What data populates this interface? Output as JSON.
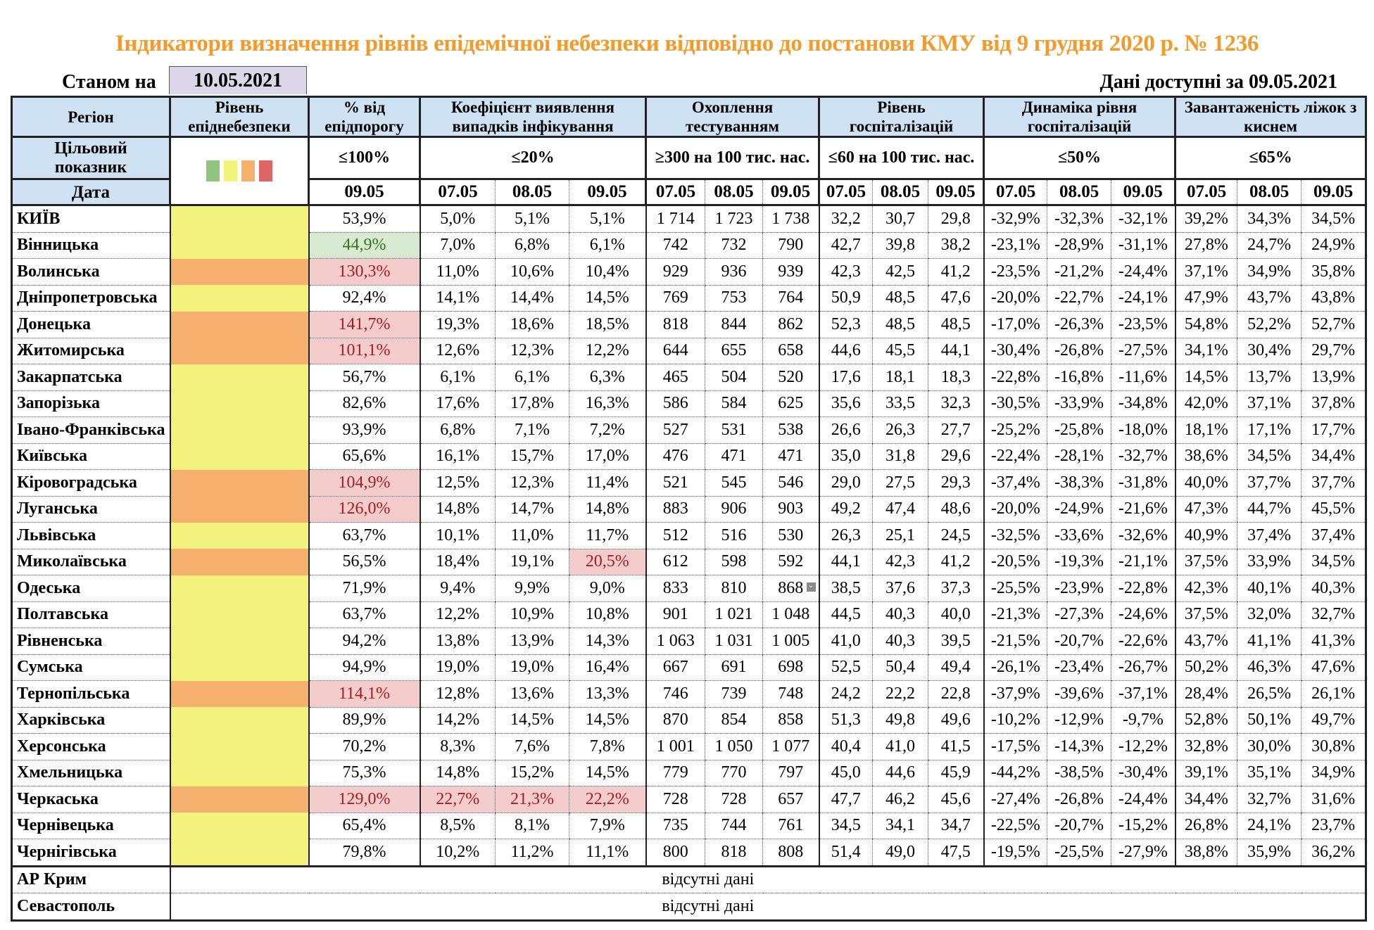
{
  "title": "Індикатори визначення рівнів епідемічної небезпеки відповідно до постанови КМУ від 9 грудня 2020 р. № 1236",
  "as_of_label": "Станом на",
  "as_of_date": "10.05.2021",
  "available_label": "Дані доступні за  09.05.2021",
  "headers": {
    "region": "Регіон",
    "level": "Рівень епіднебезпеки",
    "threshold_pct": "% від епідпорогу",
    "detection": "Коефіцієнт виявлення випадків інфікування",
    "testing": "Охоплення тестуванням",
    "hospitalization": "Рівень госпіталізацій",
    "hosp_dynamics": "Динаміка рівня госпіталізацій",
    "oxygen_beds": "Завантаженість ліжок з киснем"
  },
  "target_label": "Цільовий показник",
  "targets": {
    "threshold_pct": "≤100%",
    "detection": "≤20%",
    "testing": "≥300 на 100 тис. нас.",
    "hospitalization": "≤60 на 100 тис. нас.",
    "hosp_dynamics": "≤50%",
    "oxygen_beds": "≤65%"
  },
  "date_label": "Дата",
  "dates": {
    "single": "09.05",
    "triple": [
      "07.05",
      "08.05",
      "09.05"
    ]
  },
  "level_legend": [
    {
      "name": "green",
      "color": "#93c47d"
    },
    {
      "name": "yellow",
      "color": "#f3f47a"
    },
    {
      "name": "orange",
      "color": "#f6b26b"
    },
    {
      "name": "red",
      "color": "#e06666"
    }
  ],
  "level_colors": {
    "yellow": "#f2f27c",
    "orange": "#f4b06c"
  },
  "rows": [
    {
      "region": "КИЇВ",
      "level": "yellow",
      "pct": "53,9%",
      "pct_flag": "",
      "det": [
        "5,0%",
        "5,1%",
        "5,1%"
      ],
      "det_flag": [
        0,
        0,
        0
      ],
      "test": [
        "1 714",
        "1 723",
        "1 738"
      ],
      "hosp": [
        "32,2",
        "30,7",
        "29,8"
      ],
      "dyn": [
        "-32,9%",
        "-32,3%",
        "-32,1%"
      ],
      "beds": [
        "39,2%",
        "34,3%",
        "34,5%"
      ]
    },
    {
      "region": "Вінницька",
      "level": "yellow",
      "pct": "44,9%",
      "pct_flag": "good",
      "det": [
        "7,0%",
        "6,8%",
        "6,1%"
      ],
      "det_flag": [
        0,
        0,
        0
      ],
      "test": [
        "742",
        "732",
        "790"
      ],
      "hosp": [
        "42,7",
        "39,8",
        "38,2"
      ],
      "dyn": [
        "-23,1%",
        "-28,9%",
        "-31,1%"
      ],
      "beds": [
        "27,8%",
        "24,7%",
        "24,9%"
      ]
    },
    {
      "region": "Волинська",
      "level": "orange",
      "pct": "130,3%",
      "pct_flag": "bad",
      "det": [
        "11,0%",
        "10,6%",
        "10,4%"
      ],
      "det_flag": [
        0,
        0,
        0
      ],
      "test": [
        "929",
        "936",
        "939"
      ],
      "hosp": [
        "42,3",
        "42,5",
        "41,2"
      ],
      "dyn": [
        "-23,5%",
        "-21,2%",
        "-24,4%"
      ],
      "beds": [
        "37,1%",
        "34,9%",
        "35,8%"
      ]
    },
    {
      "region": "Дніпропетровська",
      "level": "yellow",
      "pct": "92,4%",
      "pct_flag": "",
      "det": [
        "14,1%",
        "14,4%",
        "14,5%"
      ],
      "det_flag": [
        0,
        0,
        0
      ],
      "test": [
        "769",
        "753",
        "764"
      ],
      "hosp": [
        "50,9",
        "48,5",
        "47,6"
      ],
      "dyn": [
        "-20,0%",
        "-22,7%",
        "-24,1%"
      ],
      "beds": [
        "47,9%",
        "43,7%",
        "43,8%"
      ]
    },
    {
      "region": "Донецька",
      "level": "orange",
      "pct": "141,7%",
      "pct_flag": "bad",
      "det": [
        "19,3%",
        "18,6%",
        "18,5%"
      ],
      "det_flag": [
        0,
        0,
        0
      ],
      "test": [
        "818",
        "844",
        "862"
      ],
      "hosp": [
        "52,3",
        "48,5",
        "48,5"
      ],
      "dyn": [
        "-17,0%",
        "-26,3%",
        "-23,5%"
      ],
      "beds": [
        "54,8%",
        "52,2%",
        "52,7%"
      ]
    },
    {
      "region": "Житомирська",
      "level": "orange",
      "pct": "101,1%",
      "pct_flag": "bad",
      "det": [
        "12,6%",
        "12,3%",
        "12,2%"
      ],
      "det_flag": [
        0,
        0,
        0
      ],
      "test": [
        "644",
        "655",
        "658"
      ],
      "hosp": [
        "44,6",
        "45,5",
        "44,1"
      ],
      "dyn": [
        "-30,4%",
        "-26,8%",
        "-27,5%"
      ],
      "beds": [
        "34,1%",
        "30,4%",
        "29,7%"
      ]
    },
    {
      "region": "Закарпатська",
      "level": "yellow",
      "pct": "56,7%",
      "pct_flag": "",
      "det": [
        "6,1%",
        "6,1%",
        "6,3%"
      ],
      "det_flag": [
        0,
        0,
        0
      ],
      "test": [
        "465",
        "504",
        "520"
      ],
      "hosp": [
        "17,6",
        "18,1",
        "18,3"
      ],
      "dyn": [
        "-22,8%",
        "-16,8%",
        "-11,6%"
      ],
      "beds": [
        "14,5%",
        "13,7%",
        "13,9%"
      ]
    },
    {
      "region": "Запорізька",
      "level": "yellow",
      "pct": "82,6%",
      "pct_flag": "",
      "det": [
        "17,6%",
        "17,8%",
        "16,3%"
      ],
      "det_flag": [
        0,
        0,
        0
      ],
      "test": [
        "586",
        "584",
        "625"
      ],
      "hosp": [
        "35,6",
        "33,5",
        "32,3"
      ],
      "dyn": [
        "-30,5%",
        "-33,9%",
        "-34,8%"
      ],
      "beds": [
        "42,0%",
        "37,1%",
        "37,8%"
      ]
    },
    {
      "region": "Івано-Франківська",
      "level": "yellow",
      "pct": "93,9%",
      "pct_flag": "",
      "det": [
        "6,8%",
        "7,1%",
        "7,2%"
      ],
      "det_flag": [
        0,
        0,
        0
      ],
      "test": [
        "527",
        "531",
        "538"
      ],
      "hosp": [
        "26,6",
        "26,3",
        "27,7"
      ],
      "dyn": [
        "-25,2%",
        "-25,8%",
        "-18,0%"
      ],
      "beds": [
        "18,1%",
        "17,1%",
        "17,7%"
      ]
    },
    {
      "region": "Київська",
      "level": "yellow",
      "pct": "65,6%",
      "pct_flag": "",
      "det": [
        "16,1%",
        "15,7%",
        "17,0%"
      ],
      "det_flag": [
        0,
        0,
        0
      ],
      "test": [
        "476",
        "471",
        "471"
      ],
      "hosp": [
        "35,0",
        "31,8",
        "29,6"
      ],
      "dyn": [
        "-22,4%",
        "-28,1%",
        "-32,7%"
      ],
      "beds": [
        "38,6%",
        "34,5%",
        "34,4%"
      ]
    },
    {
      "region": "Кіровоградська",
      "level": "orange",
      "pct": "104,9%",
      "pct_flag": "bad",
      "det": [
        "12,5%",
        "12,3%",
        "11,4%"
      ],
      "det_flag": [
        0,
        0,
        0
      ],
      "test": [
        "521",
        "545",
        "546"
      ],
      "hosp": [
        "29,0",
        "27,5",
        "29,3"
      ],
      "dyn": [
        "-37,4%",
        "-38,3%",
        "-31,8%"
      ],
      "beds": [
        "40,0%",
        "37,7%",
        "37,7%"
      ]
    },
    {
      "region": "Луганська",
      "level": "orange",
      "pct": "126,0%",
      "pct_flag": "bad",
      "det": [
        "14,8%",
        "14,7%",
        "14,8%"
      ],
      "det_flag": [
        0,
        0,
        0
      ],
      "test": [
        "883",
        "906",
        "903"
      ],
      "hosp": [
        "49,2",
        "47,4",
        "48,6"
      ],
      "dyn": [
        "-20,0%",
        "-24,9%",
        "-21,6%"
      ],
      "beds": [
        "47,3%",
        "44,7%",
        "45,5%"
      ]
    },
    {
      "region": "Львівська",
      "level": "yellow",
      "pct": "63,7%",
      "pct_flag": "",
      "det": [
        "10,1%",
        "11,0%",
        "11,7%"
      ],
      "det_flag": [
        0,
        0,
        0
      ],
      "test": [
        "512",
        "516",
        "530"
      ],
      "hosp": [
        "26,3",
        "25,1",
        "24,5"
      ],
      "dyn": [
        "-32,5%",
        "-33,6%",
        "-32,6%"
      ],
      "beds": [
        "40,9%",
        "37,4%",
        "37,4%"
      ]
    },
    {
      "region": "Миколаївська",
      "level": "orange",
      "pct": "56,5%",
      "pct_flag": "",
      "det": [
        "18,4%",
        "19,1%",
        "20,5%"
      ],
      "det_flag": [
        0,
        0,
        1
      ],
      "test": [
        "612",
        "598",
        "592"
      ],
      "hosp": [
        "44,1",
        "42,3",
        "41,2"
      ],
      "dyn": [
        "-20,5%",
        "-19,3%",
        "-21,1%"
      ],
      "beds": [
        "37,5%",
        "33,9%",
        "34,5%"
      ]
    },
    {
      "region": "Одеська",
      "level": "yellow",
      "pct": "71,9%",
      "pct_flag": "",
      "det": [
        "9,4%",
        "9,9%",
        "9,0%"
      ],
      "det_flag": [
        0,
        0,
        0
      ],
      "test": [
        "833",
        "810",
        "868"
      ],
      "hosp": [
        "38,5",
        "37,6",
        "37,3"
      ],
      "dyn": [
        "-25,5%",
        "-23,9%",
        "-22,8%"
      ],
      "beds": [
        "42,3%",
        "40,1%",
        "40,3%"
      ],
      "has_dropdown": true
    },
    {
      "region": "Полтавська",
      "level": "yellow",
      "pct": "63,7%",
      "pct_flag": "",
      "det": [
        "12,2%",
        "10,9%",
        "10,8%"
      ],
      "det_flag": [
        0,
        0,
        0
      ],
      "test": [
        "901",
        "1 021",
        "1 048"
      ],
      "hosp": [
        "44,5",
        "40,3",
        "40,0"
      ],
      "dyn": [
        "-21,3%",
        "-27,3%",
        "-24,6%"
      ],
      "beds": [
        "37,5%",
        "32,0%",
        "32,7%"
      ]
    },
    {
      "region": "Рівненська",
      "level": "yellow",
      "pct": "94,2%",
      "pct_flag": "",
      "det": [
        "13,8%",
        "13,9%",
        "14,3%"
      ],
      "det_flag": [
        0,
        0,
        0
      ],
      "test": [
        "1 063",
        "1 031",
        "1 005"
      ],
      "hosp": [
        "41,0",
        "40,3",
        "39,5"
      ],
      "dyn": [
        "-21,5%",
        "-20,7%",
        "-22,6%"
      ],
      "beds": [
        "43,7%",
        "41,1%",
        "41,3%"
      ]
    },
    {
      "region": "Сумська",
      "level": "yellow",
      "pct": "94,9%",
      "pct_flag": "",
      "det": [
        "19,0%",
        "19,0%",
        "16,4%"
      ],
      "det_flag": [
        0,
        0,
        0
      ],
      "test": [
        "667",
        "691",
        "698"
      ],
      "hosp": [
        "52,5",
        "50,4",
        "49,4"
      ],
      "dyn": [
        "-26,1%",
        "-23,4%",
        "-26,7%"
      ],
      "beds": [
        "50,2%",
        "46,3%",
        "47,6%"
      ]
    },
    {
      "region": "Тернопільська",
      "level": "orange",
      "pct": "114,1%",
      "pct_flag": "bad",
      "det": [
        "12,8%",
        "13,6%",
        "13,3%"
      ],
      "det_flag": [
        0,
        0,
        0
      ],
      "test": [
        "746",
        "739",
        "748"
      ],
      "hosp": [
        "24,2",
        "22,2",
        "22,8"
      ],
      "dyn": [
        "-37,9%",
        "-39,6%",
        "-37,1%"
      ],
      "beds": [
        "28,4%",
        "26,5%",
        "26,1%"
      ]
    },
    {
      "region": "Харківська",
      "level": "yellow",
      "pct": "89,9%",
      "pct_flag": "",
      "det": [
        "14,2%",
        "14,5%",
        "14,5%"
      ],
      "det_flag": [
        0,
        0,
        0
      ],
      "test": [
        "870",
        "854",
        "858"
      ],
      "hosp": [
        "51,3",
        "49,8",
        "49,6"
      ],
      "dyn": [
        "-10,2%",
        "-12,9%",
        "-9,7%"
      ],
      "beds": [
        "52,8%",
        "50,1%",
        "49,7%"
      ]
    },
    {
      "region": "Херсонська",
      "level": "yellow",
      "pct": "70,2%",
      "pct_flag": "",
      "det": [
        "8,3%",
        "7,6%",
        "7,8%"
      ],
      "det_flag": [
        0,
        0,
        0
      ],
      "test": [
        "1 001",
        "1 050",
        "1 077"
      ],
      "hosp": [
        "40,4",
        "41,0",
        "41,5"
      ],
      "dyn": [
        "-17,5%",
        "-14,3%",
        "-12,2%"
      ],
      "beds": [
        "32,8%",
        "30,0%",
        "30,8%"
      ]
    },
    {
      "region": "Хмельницька",
      "level": "yellow",
      "pct": "75,3%",
      "pct_flag": "",
      "det": [
        "14,8%",
        "15,2%",
        "14,5%"
      ],
      "det_flag": [
        0,
        0,
        0
      ],
      "test": [
        "779",
        "770",
        "797"
      ],
      "hosp": [
        "45,0",
        "44,6",
        "45,9"
      ],
      "dyn": [
        "-44,2%",
        "-38,5%",
        "-30,4%"
      ],
      "beds": [
        "39,1%",
        "35,1%",
        "34,9%"
      ]
    },
    {
      "region": "Черкаська",
      "level": "orange",
      "pct": "129,0%",
      "pct_flag": "bad",
      "det": [
        "22,7%",
        "21,3%",
        "22,2%"
      ],
      "det_flag": [
        1,
        1,
        1
      ],
      "test": [
        "728",
        "728",
        "657"
      ],
      "hosp": [
        "47,7",
        "46,2",
        "45,6"
      ],
      "dyn": [
        "-27,4%",
        "-26,8%",
        "-24,4%"
      ],
      "beds": [
        "34,4%",
        "32,7%",
        "31,6%"
      ]
    },
    {
      "region": "Чернівецька",
      "level": "yellow",
      "pct": "65,4%",
      "pct_flag": "",
      "det": [
        "8,5%",
        "8,1%",
        "7,9%"
      ],
      "det_flag": [
        0,
        0,
        0
      ],
      "test": [
        "735",
        "744",
        "761"
      ],
      "hosp": [
        "34,5",
        "34,1",
        "34,7"
      ],
      "dyn": [
        "-22,5%",
        "-20,7%",
        "-15,2%"
      ],
      "beds": [
        "26,8%",
        "24,1%",
        "23,7%"
      ]
    },
    {
      "region": "Чернігівська",
      "level": "yellow",
      "pct": "79,8%",
      "pct_flag": "",
      "det": [
        "10,2%",
        "11,2%",
        "11,1%"
      ],
      "det_flag": [
        0,
        0,
        0
      ],
      "test": [
        "800",
        "818",
        "808"
      ],
      "hosp": [
        "51,4",
        "49,0",
        "47,5"
      ],
      "dyn": [
        "-19,5%",
        "-25,5%",
        "-27,9%"
      ],
      "beds": [
        "38,8%",
        "35,9%",
        "36,2%"
      ]
    }
  ],
  "no_data_rows": [
    {
      "region": "АР Крим",
      "text": "відсутні дані"
    },
    {
      "region": "Севастополь",
      "text": "відсутні дані"
    }
  ]
}
